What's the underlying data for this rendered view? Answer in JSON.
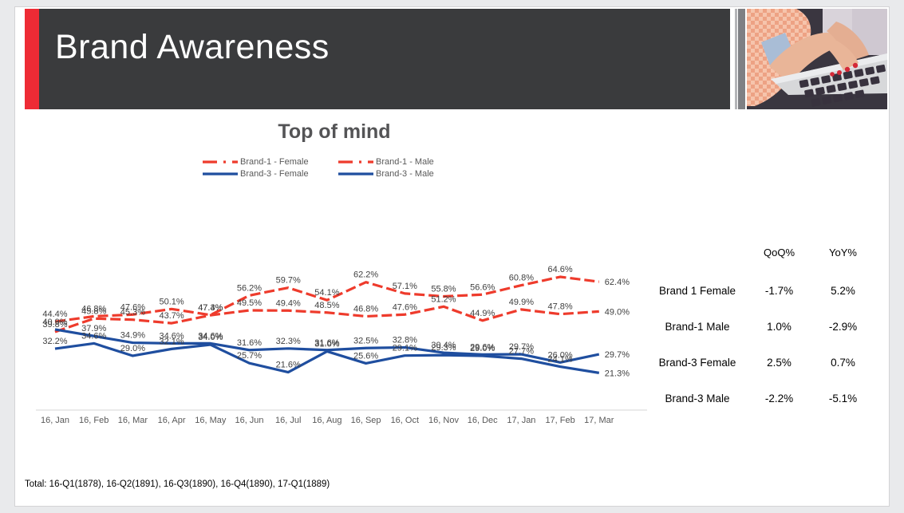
{
  "header": {
    "title": "Brand Awareness"
  },
  "chart_data": {
    "type": "line",
    "title": "Top of mind",
    "x": [
      "16, Jan",
      "16, Feb",
      "16, Mar",
      "16, Apr",
      "16, May",
      "16, Jun",
      "16, Jul",
      "16, Aug",
      "16, Sep",
      "16, Oct",
      "16, Nov",
      "16, Dec",
      "17, Jan",
      "17, Feb",
      "17, Mar"
    ],
    "series": [
      {
        "name": "Brand-1 - Female",
        "color": "#ee3b2c",
        "dash": true,
        "values": [
          44.4,
          46.8,
          47.6,
          50.1,
          47.4,
          56.2,
          59.7,
          54.1,
          62.2,
          57.1,
          55.8,
          56.6,
          60.8,
          64.6,
          62.4
        ]
      },
      {
        "name": "Brand-1 - Male",
        "color": "#ee3b2c",
        "dash": true,
        "values": [
          39.8,
          45.8,
          45.3,
          43.7,
          47.3,
          49.5,
          49.4,
          48.5,
          46.8,
          47.6,
          51.2,
          44.9,
          49.9,
          47.8,
          49.0
        ]
      },
      {
        "name": "Brand-3 - Female",
        "color": "#1f4e9f",
        "dash": false,
        "values": [
          40.9,
          37.9,
          34.9,
          34.6,
          34.6,
          31.6,
          32.3,
          31.6,
          32.5,
          32.8,
          30.4,
          29.6,
          29.7,
          26.0,
          29.7
        ]
      },
      {
        "name": "Brand-3 - Male",
        "color": "#1f4e9f",
        "dash": false,
        "values": [
          32.2,
          34.6,
          29.0,
          32.1,
          34.0,
          25.7,
          21.6,
          31.0,
          25.6,
          29.1,
          29.3,
          29.0,
          27.7,
          24.1,
          21.3
        ]
      }
    ],
    "ylim": [
      15,
      70
    ],
    "grid": false,
    "legend_position": "top-center",
    "label_format": "one-decimal-percent"
  },
  "summary_table": {
    "headers": {
      "qoq": "QoQ%",
      "yoy": "YoY%"
    },
    "rows": [
      {
        "label": "Brand 1 Female",
        "qoq": "-1.7%",
        "yoy": "5.2%"
      },
      {
        "label": "Brand-1 Male",
        "qoq": "1.0%",
        "yoy": "-2.9%"
      },
      {
        "label": "Brand-3 Female",
        "qoq": "2.5%",
        "yoy": "0.7%"
      },
      {
        "label": "Brand-3 Male",
        "qoq": "-2.2%",
        "yoy": "-5.1%"
      }
    ]
  },
  "footnote": {
    "text": "Total: 16-Q1(1878), 16-Q2(1891), 16-Q3(1890), 16-Q4(1890), 17-Q1(1889)"
  }
}
